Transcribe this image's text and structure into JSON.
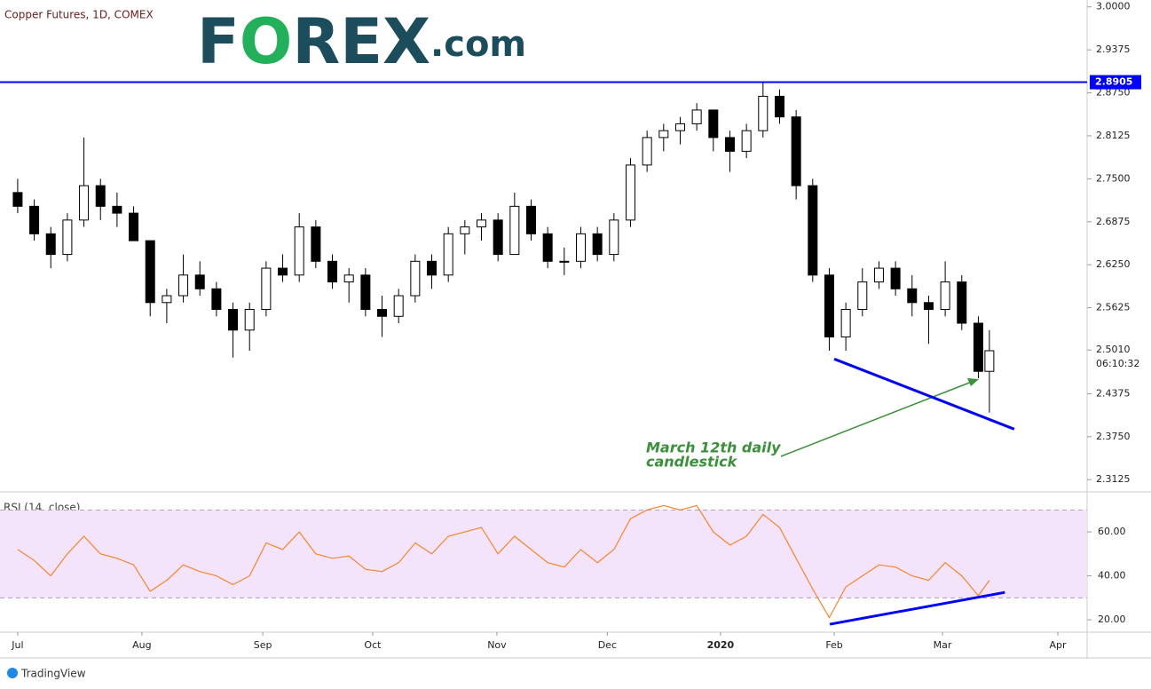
{
  "chart_data": [
    {
      "type": "candlestick",
      "title": "Copper Futures, 1D, COMEX",
      "logo": [
        "F",
        "O",
        "REX",
        ".com"
      ],
      "x": [
        0,
        3,
        6,
        9,
        12,
        15,
        18,
        21,
        24,
        27,
        30,
        33,
        36,
        39,
        42,
        45,
        48,
        51,
        54,
        57,
        60,
        63,
        66,
        69,
        72,
        75,
        78,
        81,
        84,
        87,
        90,
        93,
        96,
        99,
        102,
        105,
        108,
        111,
        114,
        117,
        120,
        123,
        126,
        129,
        132,
        135,
        138,
        141,
        144,
        147,
        150,
        153,
        156,
        159,
        162,
        165,
        168,
        171,
        174,
        176
      ],
      "open": [
        2.73,
        2.71,
        2.67,
        2.64,
        2.69,
        2.74,
        2.71,
        2.7,
        2.66,
        2.57,
        2.58,
        2.61,
        2.59,
        2.56,
        2.53,
        2.56,
        2.62,
        2.61,
        2.68,
        2.63,
        2.6,
        2.61,
        2.56,
        2.55,
        2.58,
        2.63,
        2.61,
        2.67,
        2.68,
        2.69,
        2.64,
        2.71,
        2.67,
        2.63,
        2.63,
        2.67,
        2.64,
        2.69,
        2.77,
        2.81,
        2.82,
        2.83,
        2.85,
        2.81,
        2.79,
        2.82,
        2.87,
        2.84,
        2.74,
        2.61,
        2.52,
        2.56,
        2.6,
        2.62,
        2.59,
        2.57,
        2.56,
        2.6,
        2.54,
        2.47
      ],
      "high": [
        2.75,
        2.72,
        2.68,
        2.7,
        2.81,
        2.75,
        2.73,
        2.71,
        2.66,
        2.59,
        2.64,
        2.63,
        2.6,
        2.57,
        2.57,
        2.63,
        2.64,
        2.7,
        2.69,
        2.64,
        2.62,
        2.62,
        2.58,
        2.59,
        2.64,
        2.64,
        2.68,
        2.69,
        2.7,
        2.7,
        2.73,
        2.72,
        2.68,
        2.65,
        2.68,
        2.68,
        2.7,
        2.78,
        2.82,
        2.83,
        2.84,
        2.86,
        2.85,
        2.82,
        2.83,
        2.89,
        2.88,
        2.85,
        2.75,
        2.62,
        2.57,
        2.62,
        2.63,
        2.63,
        2.61,
        2.58,
        2.63,
        2.61,
        2.55,
        2.53
      ],
      "low": [
        2.7,
        2.66,
        2.62,
        2.63,
        2.68,
        2.69,
        2.68,
        2.66,
        2.55,
        2.54,
        2.57,
        2.58,
        2.55,
        2.49,
        2.5,
        2.55,
        2.6,
        2.6,
        2.62,
        2.59,
        2.57,
        2.55,
        2.52,
        2.54,
        2.57,
        2.59,
        2.6,
        2.64,
        2.66,
        2.63,
        2.64,
        2.66,
        2.62,
        2.61,
        2.62,
        2.63,
        2.63,
        2.68,
        2.76,
        2.79,
        2.8,
        2.82,
        2.79,
        2.76,
        2.78,
        2.81,
        2.83,
        2.72,
        2.6,
        2.5,
        2.5,
        2.55,
        2.59,
        2.58,
        2.55,
        2.51,
        2.55,
        2.53,
        2.46,
        2.41
      ],
      "close": [
        2.71,
        2.67,
        2.64,
        2.69,
        2.74,
        2.71,
        2.7,
        2.66,
        2.57,
        2.58,
        2.61,
        2.59,
        2.56,
        2.53,
        2.56,
        2.62,
        2.61,
        2.68,
        2.63,
        2.6,
        2.61,
        2.56,
        2.55,
        2.58,
        2.63,
        2.61,
        2.67,
        2.68,
        2.69,
        2.64,
        2.71,
        2.67,
        2.63,
        2.63,
        2.67,
        2.64,
        2.69,
        2.77,
        2.81,
        2.82,
        2.83,
        2.85,
        2.81,
        2.79,
        2.82,
        2.87,
        2.84,
        2.74,
        2.61,
        2.52,
        2.56,
        2.6,
        2.62,
        2.59,
        2.57,
        2.56,
        2.6,
        2.54,
        2.47,
        2.5
      ],
      "up_color": "#ffffff",
      "down_color": "#000000",
      "xlim": [
        -3.2,
        193.7
      ],
      "ylim": [
        2.296,
        3.01
      ],
      "yticks": [
        {
          "value": 3.0,
          "label": "3.0000"
        },
        {
          "value": 2.9375,
          "label": "2.9375"
        },
        {
          "value": 2.875,
          "label": "2.8750"
        },
        {
          "value": 2.8125,
          "label": "2.8125"
        },
        {
          "value": 2.75,
          "label": "2.7500"
        },
        {
          "value": 2.6875,
          "label": "2.6875"
        },
        {
          "value": 2.625,
          "label": "2.6250"
        },
        {
          "value": 2.5625,
          "label": "2.5625"
        },
        {
          "value": 2.4375,
          "label": "2.4375"
        },
        {
          "value": 2.375,
          "label": "2.3750"
        },
        {
          "value": 2.3125,
          "label": "2.3125"
        }
      ],
      "hline": {
        "value": 2.8905,
        "label": "2.8905",
        "color": "#0000ff"
      },
      "last_price": {
        "value": 2.501,
        "label": "2.5010"
      },
      "countdown": "06:10:32",
      "trendline": {
        "x": [
          147.9,
          180.5
        ],
        "values": [
          2.488,
          2.386
        ],
        "color": "#0000ff"
      },
      "annotation": [
        "March 12th daily",
        "candlestick"
      ]
    },
    {
      "type": "line",
      "title": "RSI (14, close)",
      "x": [
        0,
        3,
        6,
        9,
        12,
        15,
        18,
        21,
        24,
        27,
        30,
        33,
        36,
        39,
        42,
        45,
        48,
        51,
        54,
        57,
        60,
        63,
        66,
        69,
        72,
        75,
        78,
        81,
        84,
        87,
        90,
        93,
        96,
        99,
        102,
        105,
        108,
        111,
        114,
        117,
        120,
        123,
        126,
        129,
        132,
        135,
        138,
        141,
        144,
        147,
        150,
        153,
        156,
        159,
        162,
        165,
        168,
        171,
        174,
        176
      ],
      "values": [
        52,
        47,
        40,
        50,
        58,
        50,
        48,
        45,
        33,
        38,
        45,
        42,
        40,
        36,
        40,
        55,
        52,
        60,
        50,
        48,
        49,
        43,
        42,
        46,
        55,
        50,
        58,
        60,
        62,
        50,
        58,
        52,
        46,
        44,
        52,
        46,
        52,
        66,
        70,
        72,
        70,
        72,
        60,
        54,
        58,
        68,
        62,
        48,
        34,
        21,
        35,
        40,
        45,
        44,
        40,
        38,
        46,
        40,
        31,
        38
      ],
      "color": "#f7852b",
      "band": [
        30,
        70
      ],
      "band_color": "#f3e4fb",
      "xlim": [
        -3.2,
        193.7
      ],
      "ylim": [
        15.2,
        77
      ],
      "yticks": [
        {
          "value": 60,
          "label": "60.00"
        },
        {
          "value": 40,
          "label": "40.00"
        },
        {
          "value": 20,
          "label": "20.00"
        }
      ],
      "xticks": [
        {
          "value": 0,
          "label": "Jul"
        },
        {
          "value": 22.5,
          "label": "Aug"
        },
        {
          "value": 44.4,
          "label": "Sep"
        },
        {
          "value": 64.3,
          "label": "Oct"
        },
        {
          "value": 86.8,
          "label": "Nov"
        },
        {
          "value": 106.8,
          "label": "Dec"
        },
        {
          "value": 127.3,
          "label": "2020"
        },
        {
          "value": 147.9,
          "label": "Feb"
        },
        {
          "value": 167.5,
          "label": "Mar"
        },
        {
          "value": 188.4,
          "label": "Apr"
        }
      ],
      "trendline": {
        "x": [
          147.1,
          178.8
        ],
        "values": [
          18.0,
          32.5
        ],
        "color": "#0000ff"
      }
    },
    {
      "type": "footer",
      "brand": "TradingView"
    }
  ]
}
